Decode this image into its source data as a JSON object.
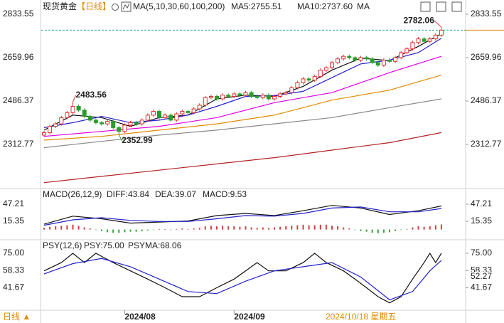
{
  "header": {
    "name": "现货黄金",
    "period": "【日线】",
    "bottom_period": "日线 ▲",
    "date_label": "2024/10/18 星期五"
  },
  "chart_data": [
    {
      "type": "candlestick",
      "title": "MA(5,10,30,60,100,200)",
      "ylim": [
        2145,
        2862
      ],
      "yticks": [
        2833.55,
        2659.96,
        2486.37,
        2312.77
      ],
      "xticks": [
        {
          "value": 14,
          "label": "2024/08"
        },
        {
          "value": 33,
          "label": "2024/09"
        }
      ],
      "up_color": "#e03030",
      "down_color": "#2a9d2a",
      "price_line_color": "#2aa0a0",
      "ohlc": [
        [
          2350,
          2367,
          2343,
          2360
        ],
        [
          2360,
          2392,
          2353,
          2385
        ],
        [
          2385,
          2402,
          2378,
          2395
        ],
        [
          2395,
          2427,
          2388,
          2420
        ],
        [
          2420,
          2447,
          2413,
          2440
        ],
        [
          2440,
          2483.56,
          2433,
          2465
        ],
        [
          2465,
          2472,
          2443,
          2450
        ],
        [
          2450,
          2457,
          2418,
          2425
        ],
        [
          2425,
          2432,
          2403,
          2410
        ],
        [
          2410,
          2417,
          2393,
          2400
        ],
        [
          2400,
          2407,
          2388,
          2395
        ],
        [
          2395,
          2412,
          2388,
          2405
        ],
        [
          2405,
          2412,
          2373,
          2380
        ],
        [
          2380,
          2387,
          2352.99,
          2365
        ],
        [
          2365,
          2397,
          2358,
          2390
        ],
        [
          2390,
          2407,
          2383,
          2400
        ],
        [
          2400,
          2407,
          2388,
          2395
        ],
        [
          2395,
          2417,
          2388,
          2410
        ],
        [
          2410,
          2437,
          2403,
          2430
        ],
        [
          2430,
          2452,
          2423,
          2445
        ],
        [
          2445,
          2452,
          2413,
          2420
        ],
        [
          2420,
          2437,
          2413,
          2430
        ],
        [
          2430,
          2437,
          2403,
          2410
        ],
        [
          2410,
          2442,
          2403,
          2435
        ],
        [
          2435,
          2452,
          2428,
          2445
        ],
        [
          2445,
          2452,
          2433,
          2440
        ],
        [
          2440,
          2462,
          2433,
          2455
        ],
        [
          2455,
          2477,
          2448,
          2470
        ],
        [
          2470,
          2507,
          2463,
          2500
        ],
        [
          2500,
          2512,
          2493,
          2505
        ],
        [
          2505,
          2512,
          2488,
          2495
        ],
        [
          2495,
          2517,
          2488,
          2510
        ],
        [
          2510,
          2517,
          2498,
          2505
        ],
        [
          2505,
          2522,
          2498,
          2515
        ],
        [
          2515,
          2522,
          2503,
          2510
        ],
        [
          2510,
          2527,
          2503,
          2520
        ],
        [
          2520,
          2527,
          2498,
          2505
        ],
        [
          2505,
          2512,
          2493,
          2500
        ],
        [
          2500,
          2517,
          2493,
          2510
        ],
        [
          2510,
          2517,
          2488,
          2495
        ],
        [
          2495,
          2512,
          2488,
          2505
        ],
        [
          2505,
          2522,
          2498,
          2515
        ],
        [
          2515,
          2527,
          2508,
          2520
        ],
        [
          2520,
          2547,
          2513,
          2540
        ],
        [
          2540,
          2567,
          2533,
          2560
        ],
        [
          2560,
          2582,
          2553,
          2575
        ],
        [
          2575,
          2582,
          2563,
          2570
        ],
        [
          2570,
          2592,
          2563,
          2585
        ],
        [
          2585,
          2617,
          2578,
          2610
        ],
        [
          2610,
          2627,
          2603,
          2620
        ],
        [
          2620,
          2647,
          2613,
          2640
        ],
        [
          2640,
          2662,
          2633,
          2655
        ],
        [
          2655,
          2672,
          2648,
          2665
        ],
        [
          2665,
          2672,
          2653,
          2660
        ],
        [
          2660,
          2667,
          2643,
          2650
        ],
        [
          2650,
          2667,
          2643,
          2660
        ],
        [
          2660,
          2667,
          2648,
          2655
        ],
        [
          2655,
          2662,
          2633,
          2640
        ],
        [
          2640,
          2647,
          2623,
          2630
        ],
        [
          2630,
          2657,
          2623,
          2650
        ],
        [
          2650,
          2657,
          2638,
          2645
        ],
        [
          2645,
          2667,
          2638,
          2660
        ],
        [
          2660,
          2687,
          2653,
          2680
        ],
        [
          2680,
          2702,
          2673,
          2695
        ],
        [
          2695,
          2727,
          2688,
          2720
        ],
        [
          2720,
          2742,
          2713,
          2735
        ],
        [
          2735,
          2742,
          2718,
          2725
        ],
        [
          2725,
          2742,
          2718,
          2735
        ],
        [
          2735,
          2757,
          2728,
          2750
        ],
        [
          2750,
          2782.06,
          2743,
          2770
        ]
      ],
      "series": [
        {
          "name": "MA5",
          "legend_label": "MA5:2755.51",
          "color": "#111111",
          "x": [
            0,
            5,
            10,
            15,
            20,
            25,
            30,
            35,
            40,
            45,
            50,
            55,
            60,
            65,
            69
          ],
          "values": [
            2370,
            2430,
            2420,
            2385,
            2420,
            2430,
            2495,
            2510,
            2505,
            2545,
            2610,
            2658,
            2648,
            2705,
            2755.51
          ]
        },
        {
          "name": "MA10",
          "legend_label": "MA10:2737.60",
          "color": "#2222cc",
          "x": [
            0,
            5,
            10,
            15,
            20,
            25,
            30,
            35,
            40,
            45,
            50,
            55,
            60,
            65,
            69
          ],
          "values": [
            2380,
            2400,
            2425,
            2400,
            2410,
            2430,
            2465,
            2505,
            2508,
            2525,
            2580,
            2635,
            2650,
            2680,
            2737.6
          ]
        },
        {
          "name": "MA30",
          "legend_label": "MA",
          "color": "#e000e0",
          "x": [
            0,
            10,
            20,
            30,
            40,
            50,
            60,
            69
          ],
          "values": [
            2345,
            2365,
            2385,
            2420,
            2480,
            2520,
            2600,
            2665
          ]
        },
        {
          "name": "MA60",
          "color": "#e08a00",
          "x": [
            0,
            10,
            20,
            30,
            40,
            50,
            60,
            69
          ],
          "values": [
            2330,
            2345,
            2370,
            2395,
            2430,
            2490,
            2530,
            2590
          ]
        },
        {
          "name": "MA100",
          "color": "#888888",
          "x": [
            0,
            10,
            20,
            30,
            40,
            50,
            60,
            69
          ],
          "values": [
            2300,
            2325,
            2350,
            2370,
            2395,
            2420,
            2460,
            2495
          ]
        },
        {
          "name": "MA200",
          "color": "#b22222",
          "x": [
            0,
            10,
            20,
            30,
            40,
            50,
            60,
            69
          ],
          "values": [
            2160,
            2185,
            2210,
            2235,
            2260,
            2290,
            2320,
            2360
          ]
        }
      ],
      "annotations": [
        {
          "index": 5,
          "value": 2483.56,
          "color": "#d04040"
        },
        {
          "index": 13,
          "value": 2352.99,
          "color": "#3aa03a"
        },
        {
          "index": 69,
          "value": 2782.06,
          "color": "#d04040"
        }
      ]
    },
    {
      "type": "macd",
      "title": "MACD(26,12,9)",
      "ylim": [
        -16.4,
        72.4
      ],
      "yticks": [
        47.21,
        15.35
      ],
      "histogram": {
        "legend_label": "MACD:9.53",
        "color": "#e000e0",
        "up_color": "#d04040",
        "down_color": "#3aa03a",
        "values": [
          3,
          5,
          6,
          7,
          8,
          9,
          7,
          4,
          2,
          -1,
          -3,
          -5,
          -6,
          -6,
          -5,
          -4,
          -4,
          -3,
          -2,
          -1,
          1,
          1,
          -1,
          1,
          2,
          1,
          2,
          3,
          6,
          7,
          6,
          7,
          6,
          6,
          5,
          6,
          4,
          3,
          4,
          3,
          4,
          5,
          6,
          7,
          8,
          9,
          8,
          8,
          9,
          9,
          7,
          6,
          4,
          2,
          -1,
          -3,
          -4,
          -6,
          -7,
          -6,
          -5,
          -3,
          -1,
          1,
          4,
          6,
          5,
          6,
          8,
          9.53
        ]
      },
      "series": [
        {
          "name": "DIFF",
          "legend_label": "DIFF:43.84",
          "color": "#111111",
          "x": [
            0,
            5,
            10,
            15,
            20,
            25,
            30,
            35,
            40,
            45,
            50,
            55,
            60,
            65,
            69
          ],
          "values": [
            10,
            25,
            20,
            12,
            14,
            16,
            26,
            30,
            26,
            35,
            45,
            40,
            28,
            35,
            43.84
          ]
        },
        {
          "name": "DEA",
          "legend_label": "DEA:39.07",
          "color": "#2222cc",
          "x": [
            0,
            5,
            10,
            15,
            20,
            25,
            30,
            35,
            40,
            45,
            50,
            55,
            60,
            65,
            69
          ],
          "values": [
            8,
            18,
            22,
            17,
            15,
            15,
            20,
            26,
            25,
            30,
            40,
            42,
            33,
            33,
            39.07
          ]
        }
      ]
    },
    {
      "type": "psy",
      "title": "PSY(12,6)",
      "ylim": [
        22,
        86
      ],
      "yticks": [
        {
          "value": 75,
          "label": "75.00"
        },
        58.33,
        41.67
      ],
      "right_marker": 52.27,
      "right_marker_color": "#e08a00",
      "series": [
        {
          "name": "PSY",
          "legend_label": "PSY:75.00",
          "color": "#111111",
          "x": [
            0,
            3,
            5,
            7,
            9,
            12,
            15,
            18,
            21,
            24,
            27,
            30,
            33,
            35,
            37,
            39,
            42,
            45,
            47,
            49,
            52,
            54,
            56,
            58,
            60,
            62,
            64,
            66,
            67,
            68,
            69
          ],
          "values": [
            58,
            66,
            75,
            66,
            75,
            66,
            58,
            50,
            41.67,
            33,
            33,
            41.67,
            50,
            58,
            66,
            58,
            58,
            66,
            75,
            66,
            58,
            50,
            41.67,
            33,
            27,
            33,
            50,
            66,
            75,
            66,
            75
          ]
        },
        {
          "name": "PSYMA",
          "legend_label": "PSYMA:68.06",
          "color": "#2222cc",
          "x": [
            0,
            5,
            10,
            15,
            20,
            25,
            30,
            35,
            40,
            45,
            50,
            55,
            60,
            64,
            67,
            69
          ],
          "values": [
            55,
            65,
            70,
            62,
            50,
            38,
            36,
            48,
            58,
            62,
            66,
            52,
            30,
            38,
            58,
            68.06
          ]
        }
      ]
    }
  ]
}
